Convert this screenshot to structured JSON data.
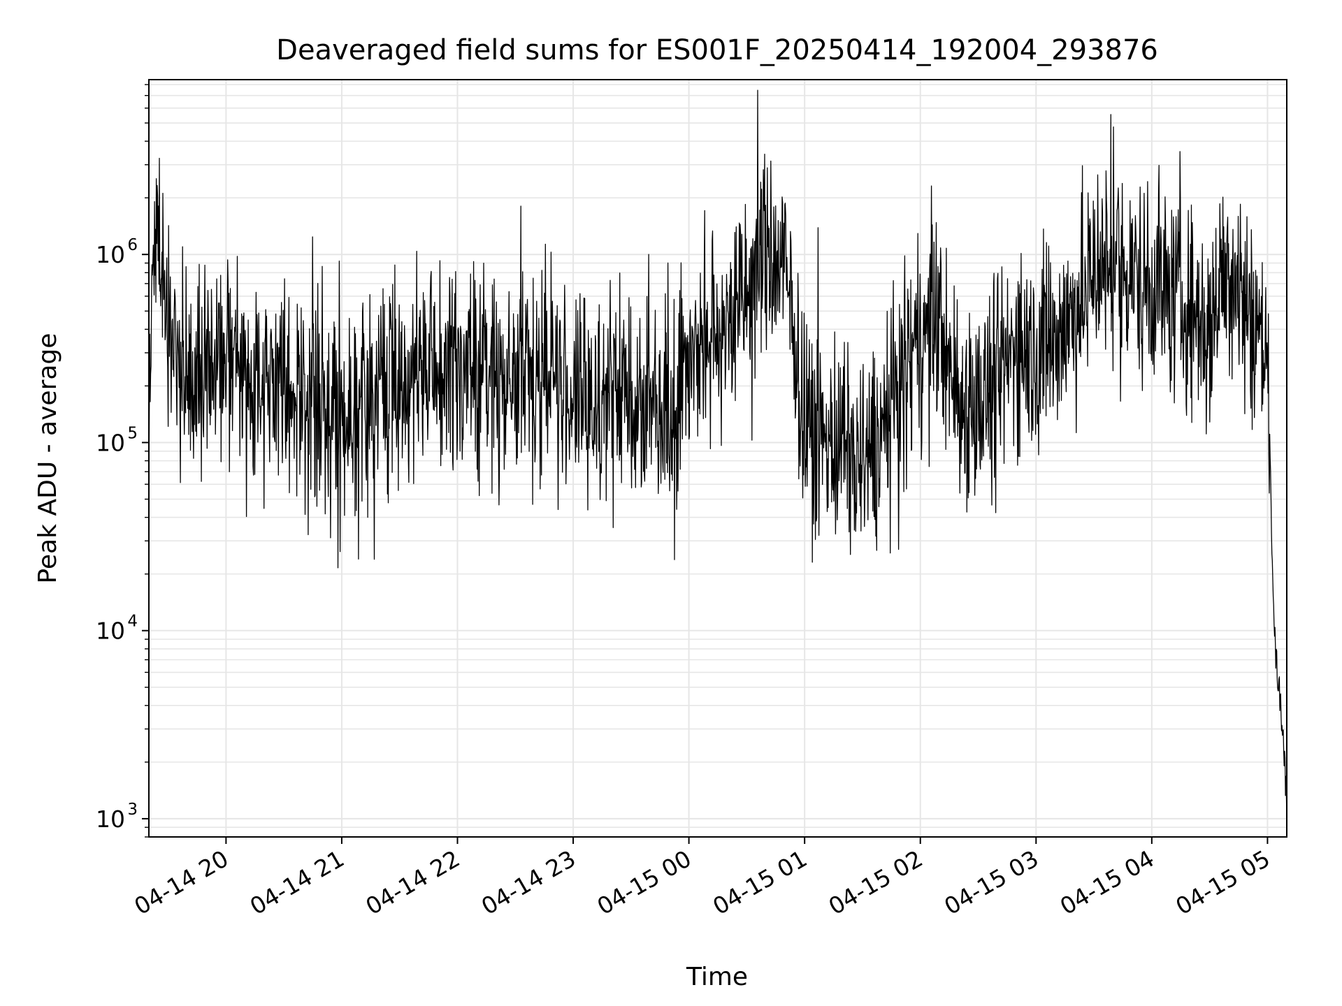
{
  "chart_data": {
    "type": "line",
    "title": "Deaveraged field sums for ES001F_20250414_192004_293876",
    "xlabel": "Time",
    "ylabel": "Peak ADU - average",
    "yscale": "log",
    "ylim": [
      800,
      8500000
    ],
    "xlim": [
      "2025-04-14 19:20",
      "2025-04-15 05:10"
    ],
    "x_ticks": [
      {
        "t": "2025-04-14 20:00",
        "label": "04-14 20"
      },
      {
        "t": "2025-04-14 21:00",
        "label": "04-14 21"
      },
      {
        "t": "2025-04-14 22:00",
        "label": "04-14 22"
      },
      {
        "t": "2025-04-14 23:00",
        "label": "04-14 23"
      },
      {
        "t": "2025-04-15 00:00",
        "label": "04-15 00"
      },
      {
        "t": "2025-04-15 01:00",
        "label": "04-15 01"
      },
      {
        "t": "2025-04-15 02:00",
        "label": "04-15 02"
      },
      {
        "t": "2025-04-15 03:00",
        "label": "04-15 03"
      },
      {
        "t": "2025-04-15 04:00",
        "label": "04-15 04"
      },
      {
        "t": "2025-04-15 05:00",
        "label": "04-15 05"
      }
    ],
    "y_ticks": [
      {
        "value": 1000,
        "base": "10",
        "exp": "3"
      },
      {
        "value": 10000,
        "base": "10",
        "exp": "4"
      },
      {
        "value": 100000,
        "base": "10",
        "exp": "5"
      },
      {
        "value": 1000000,
        "base": "10",
        "exp": "6"
      }
    ],
    "grid": true,
    "line_color": "#000000",
    "grid_color": "#e6e6e6",
    "series": [
      {
        "x": [
          "2025-04-14 19:20",
          "2025-04-14 19:22",
          "2025-04-14 19:24",
          "2025-04-14 19:26",
          "2025-04-14 19:28",
          "2025-04-14 19:30",
          "2025-04-14 19:35",
          "2025-04-14 19:40",
          "2025-04-14 19:45",
          "2025-04-14 19:50",
          "2025-04-14 19:55",
          "2025-04-14 20:00",
          "2025-04-14 20:10",
          "2025-04-14 20:20",
          "2025-04-14 20:30",
          "2025-04-14 20:40",
          "2025-04-14 20:50",
          "2025-04-14 21:00",
          "2025-04-14 21:10",
          "2025-04-14 21:20",
          "2025-04-14 21:30",
          "2025-04-14 21:40",
          "2025-04-14 21:50",
          "2025-04-14 22:00",
          "2025-04-14 22:10",
          "2025-04-14 22:20",
          "2025-04-14 22:30",
          "2025-04-14 22:40",
          "2025-04-14 22:50",
          "2025-04-14 23:00",
          "2025-04-14 23:10",
          "2025-04-14 23:20",
          "2025-04-14 23:30",
          "2025-04-14 23:40",
          "2025-04-14 23:50",
          "2025-04-15 00:00",
          "2025-04-15 00:10",
          "2025-04-15 00:20",
          "2025-04-15 00:30",
          "2025-04-15 00:40",
          "2025-04-15 00:50",
          "2025-04-15 01:00",
          "2025-04-15 01:10",
          "2025-04-15 01:20",
          "2025-04-15 01:30",
          "2025-04-15 01:40",
          "2025-04-15 01:50",
          "2025-04-15 02:00",
          "2025-04-15 02:10",
          "2025-04-15 02:20",
          "2025-04-15 02:30",
          "2025-04-15 02:40",
          "2025-04-15 02:50",
          "2025-04-15 03:00",
          "2025-04-15 03:10",
          "2025-04-15 03:20",
          "2025-04-15 03:30",
          "2025-04-15 03:40",
          "2025-04-15 03:50",
          "2025-04-15 04:00",
          "2025-04-15 04:10",
          "2025-04-15 04:20",
          "2025-04-15 04:30",
          "2025-04-15 04:40",
          "2025-04-15 04:50",
          "2025-04-15 05:00",
          "2025-04-15 05:02",
          "2025-04-15 05:04",
          "2025-04-15 05:06",
          "2025-04-15 05:08",
          "2025-04-15 05:10"
        ],
        "y": [
          110000,
          900000,
          1500000,
          1200000,
          700000,
          350000,
          300000,
          250000,
          230000,
          240000,
          250000,
          260000,
          220000,
          200000,
          180000,
          160000,
          150000,
          140000,
          170000,
          190000,
          200000,
          220000,
          230000,
          250000,
          240000,
          230000,
          210000,
          220000,
          230000,
          170000,
          160000,
          180000,
          190000,
          160000,
          150000,
          300000,
          350000,
          450000,
          600000,
          1000000,
          800000,
          120000,
          100000,
          90000,
          80000,
          110000,
          200000,
          350000,
          450000,
          150000,
          160000,
          200000,
          350000,
          300000,
          350000,
          500000,
          800000,
          900000,
          750000,
          700000,
          600000,
          500000,
          400000,
          1000000,
          500000,
          300000,
          40000,
          8000,
          5000,
          3000,
          1200
        ],
        "spike_amplitude": 3.5
      }
    ]
  }
}
